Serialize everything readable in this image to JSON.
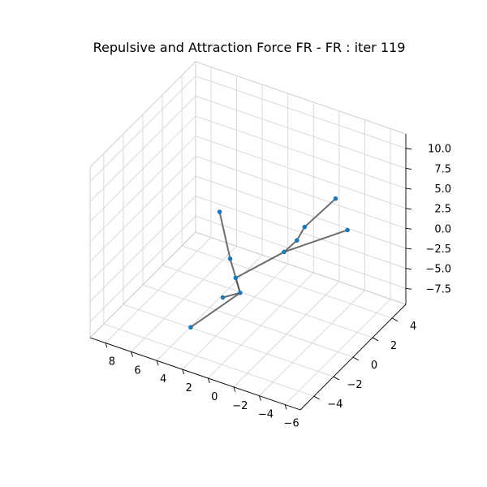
{
  "chart_data": {
    "type": "scatter3d",
    "title": "Repulsive and Attraction Force FR - FR : iter 119",
    "x_ticks": [
      "−6",
      "−4",
      "−2",
      "0",
      "2",
      "4",
      "6",
      "8"
    ],
    "y_ticks": [
      "−4",
      "−2",
      "0",
      "2",
      "4"
    ],
    "z_ticks": [
      "10.0",
      "7.5",
      "5.0",
      "2.5",
      "0.0",
      "−2.5",
      "−5.0",
      "−7.5"
    ],
    "x_tick_values": [
      -6,
      -4,
      -2,
      0,
      2,
      4,
      6,
      8
    ],
    "y_tick_values": [
      -4,
      -2,
      0,
      2,
      4
    ],
    "z_tick_values": [
      10.0,
      7.5,
      5.0,
      2.5,
      0.0,
      -2.5,
      -5.0,
      -7.5
    ],
    "xlim": [
      -7.2,
      9.2
    ],
    "ylim": [
      -5.4,
      5.4
    ],
    "zlim": [
      -9.5,
      11.8
    ],
    "node_color": "#1f77b4",
    "edge_color": "#555555",
    "nodes": [
      {
        "id": 0,
        "x": -6.6,
        "y": -1.0,
        "z": 11.2
      },
      {
        "id": 1,
        "x": -3.8,
        "y": -0.5,
        "z": 5.5
      },
      {
        "id": 2,
        "x": -3.2,
        "y": -0.5,
        "z": 3.5
      },
      {
        "id": 3,
        "x": -2.2,
        "y": -0.5,
        "z": 1.5
      },
      {
        "id": 4,
        "x": -6.0,
        "y": 1.0,
        "z": 4.5
      },
      {
        "id": 5,
        "x": 1.2,
        "y": -1.0,
        "z": -3.0
      },
      {
        "id": 6,
        "x": 1.0,
        "y": -0.8,
        "z": -5.0
      },
      {
        "id": 7,
        "x": 2.2,
        "y": -1.0,
        "z": -6.0
      },
      {
        "id": 8,
        "x": 3.0,
        "y": 0.8,
        "z": -3.8
      },
      {
        "id": 9,
        "x": 5.5,
        "y": 3.0,
        "z": -2.0
      },
      {
        "id": 10,
        "x": 2.8,
        "y": -3.5,
        "z": -7.0
      }
    ],
    "edges": [
      [
        0,
        1
      ],
      [
        1,
        2
      ],
      [
        2,
        3
      ],
      [
        4,
        3
      ],
      [
        3,
        5
      ],
      [
        5,
        6
      ],
      [
        6,
        7
      ],
      [
        6,
        8
      ],
      [
        8,
        9
      ],
      [
        6,
        10
      ]
    ]
  }
}
